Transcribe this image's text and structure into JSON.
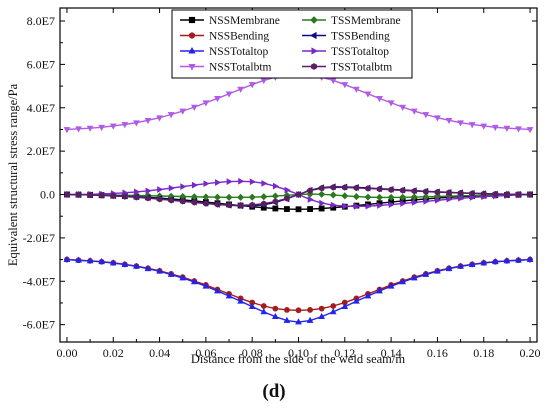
{
  "panel_label": "(d)",
  "colors": {
    "NSSMembrane": "#000000",
    "TSSMembrane": "#2b7a1f",
    "NSSBending": "#a31d1d",
    "TSSBending": "#0b0b8a",
    "NSSTotaltop": "#2424e8",
    "TSSTotaltop": "#7a28c8",
    "NSSTotalbtm": "#b15ae6",
    "TSSTotalbtm": "#5a1f62"
  },
  "chart_data": {
    "type": "line",
    "title": "",
    "xlabel": "Distance from the side of the weld seam/m",
    "ylabel": "Equivalent structural stress range/Pa",
    "xlim": [
      -0.003,
      0.203
    ],
    "ylim": [
      -68000000,
      86000000
    ],
    "grid": false,
    "legend_position": "top-center",
    "x_ticks": [
      0.0,
      0.02,
      0.04,
      0.06,
      0.08,
      0.1,
      0.12,
      0.14,
      0.16,
      0.18,
      0.2
    ],
    "x_tick_labels": [
      "0.00",
      "0.02",
      "0.04",
      "0.06",
      "0.08",
      "0.10",
      "0.12",
      "0.14",
      "0.16",
      "0.18",
      "0.20"
    ],
    "y_ticks": [
      -60000000,
      -40000000,
      -20000000,
      0,
      20000000,
      40000000,
      60000000,
      80000000
    ],
    "y_tick_labels": [
      "-6.0E7",
      "-4.0E7",
      "-2.0E7",
      "0.0",
      "2.0E7",
      "4.0E7",
      "6.0E7",
      "8.0E7"
    ],
    "x": [
      0.0,
      0.005,
      0.01,
      0.015,
      0.02,
      0.025,
      0.03,
      0.035,
      0.04,
      0.045,
      0.05,
      0.055,
      0.06,
      0.065,
      0.07,
      0.075,
      0.08,
      0.085,
      0.09,
      0.095,
      0.1,
      0.105,
      0.11,
      0.115,
      0.12,
      0.125,
      0.13,
      0.135,
      0.14,
      0.145,
      0.15,
      0.155,
      0.16,
      0.165,
      0.17,
      0.175,
      0.18,
      0.185,
      0.19,
      0.195,
      0.2
    ],
    "series": [
      {
        "name": "NSSMembrane",
        "marker": "square",
        "values": [
          0,
          -94000,
          -203000,
          -342000,
          -518000,
          -731000,
          -988000,
          -1290000,
          -1637000,
          -2031000,
          -2470000,
          -2951000,
          -3466000,
          -4007000,
          -4560000,
          -5105000,
          -5619000,
          -6076000,
          -6445000,
          -6705000,
          -6800000,
          -6705000,
          -6445000,
          -6076000,
          -5619000,
          -5105000,
          -4560000,
          -4007000,
          -3466000,
          -2951000,
          -2470000,
          -2031000,
          -1637000,
          -1290000,
          -988000,
          -731000,
          -518000,
          -342000,
          -203000,
          -94000,
          0
        ]
      },
      {
        "name": "TSSMembrane",
        "marker": "diamond",
        "values": [
          0,
          -50000,
          -110000,
          -180000,
          -260000,
          -350000,
          -450000,
          -560000,
          -680000,
          -800000,
          -920000,
          -1040000,
          -1150000,
          -1240000,
          -1300000,
          -1300000,
          -1220000,
          -1030000,
          -720000,
          -370000,
          0,
          200000,
          100000,
          -200000,
          -600000,
          -950000,
          -1200000,
          -1330000,
          -1340000,
          -1280000,
          -1170000,
          -1040000,
          -900000,
          -760000,
          -620000,
          -490000,
          -370000,
          -260000,
          -160000,
          -80000,
          0
        ]
      },
      {
        "name": "NSSBending",
        "marker": "circle",
        "values": [
          -30000000,
          -30300000,
          -30600000,
          -31000000,
          -31500000,
          -32200000,
          -33000000,
          -34000000,
          -35200000,
          -36600000,
          -38100000,
          -39900000,
          -41700000,
          -43800000,
          -45800000,
          -47900000,
          -49800000,
          -51400000,
          -52600000,
          -53200000,
          -53400000,
          -53200000,
          -52600000,
          -51400000,
          -49800000,
          -47900000,
          -45800000,
          -43800000,
          -41700000,
          -39900000,
          -38100000,
          -36600000,
          -35200000,
          -34000000,
          -33000000,
          -32200000,
          -31500000,
          -31000000,
          -30600000,
          -30300000,
          -30000000
        ]
      },
      {
        "name": "TSSBending",
        "marker": "triangle-left",
        "values": [
          0,
          -60000,
          -150000,
          -300000,
          -500000,
          -760000,
          -1070000,
          -1450000,
          -1900000,
          -2400000,
          -2950000,
          -3500000,
          -4050000,
          -4550000,
          -4950000,
          -5200000,
          -5200000,
          -4750000,
          -3650000,
          -2000000,
          0,
          2000000,
          3200000,
          3600000,
          3500000,
          3300000,
          3000000,
          2700000,
          2400000,
          2100000,
          1800000,
          1500000,
          1250000,
          1000000,
          800000,
          600000,
          420000,
          270000,
          150000,
          60000,
          0
        ]
      },
      {
        "name": "NSSTotaltop",
        "marker": "triangle-up",
        "values": [
          -30000000,
          -30300000,
          -30600000,
          -31000000,
          -31600000,
          -32300000,
          -33100000,
          -34200000,
          -35400000,
          -36900000,
          -38500000,
          -40300000,
          -42300000,
          -44500000,
          -46800000,
          -49200000,
          -51700000,
          -54100000,
          -56300000,
          -58100000,
          -58800000,
          -58100000,
          -56300000,
          -54100000,
          -51700000,
          -49200000,
          -46800000,
          -44500000,
          -42300000,
          -40300000,
          -38500000,
          -36900000,
          -35400000,
          -34200000,
          -33100000,
          -32300000,
          -31600000,
          -31000000,
          -30600000,
          -30300000,
          -30000000
        ]
      },
      {
        "name": "TSSTotaltop",
        "marker": "triangle-right",
        "values": [
          0,
          20000,
          100000,
          250000,
          480000,
          800000,
          1200000,
          1700000,
          2300000,
          2950000,
          3650000,
          4350000,
          5000000,
          5550000,
          5950000,
          6100000,
          5900000,
          5150000,
          3850000,
          2050000,
          0,
          -2300000,
          -3950000,
          -4900000,
          -5350000,
          -5450000,
          -5350000,
          -5050000,
          -4650000,
          -4150000,
          -3650000,
          -3150000,
          -2650000,
          -2150000,
          -1750000,
          -1350000,
          -1000000,
          -700000,
          -450000,
          -200000,
          0
        ]
      },
      {
        "name": "NSSTotalbtm",
        "marker": "triangle-down",
        "values": [
          30000000,
          30300000,
          30600000,
          31000000,
          31600000,
          32300000,
          33100000,
          34200000,
          35400000,
          36900000,
          38500000,
          40300000,
          42300000,
          44300000,
          46400000,
          48600000,
          50700000,
          52600000,
          54100000,
          55000000,
          55300000,
          55000000,
          54100000,
          52600000,
          50700000,
          48600000,
          46400000,
          44300000,
          42300000,
          40300000,
          38500000,
          36900000,
          35400000,
          34200000,
          33100000,
          32300000,
          31600000,
          31000000,
          30600000,
          30300000,
          30000000
        ]
      },
      {
        "name": "TSSTotalbtm",
        "marker": "hexagon",
        "values": [
          0,
          -80000,
          -200000,
          -400000,
          -650000,
          -950000,
          -1300000,
          -1700000,
          -2150000,
          -2650000,
          -3150000,
          -3650000,
          -4150000,
          -4550000,
          -4850000,
          -4950000,
          -4800000,
          -4250000,
          -3250000,
          -1800000,
          0,
          1800000,
          2900000,
          3300000,
          3250000,
          3050000,
          2800000,
          2500000,
          2200000,
          1900000,
          1600000,
          1350000,
          1100000,
          880000,
          680000,
          500000,
          350000,
          220000,
          120000,
          50000,
          0
        ]
      }
    ]
  }
}
